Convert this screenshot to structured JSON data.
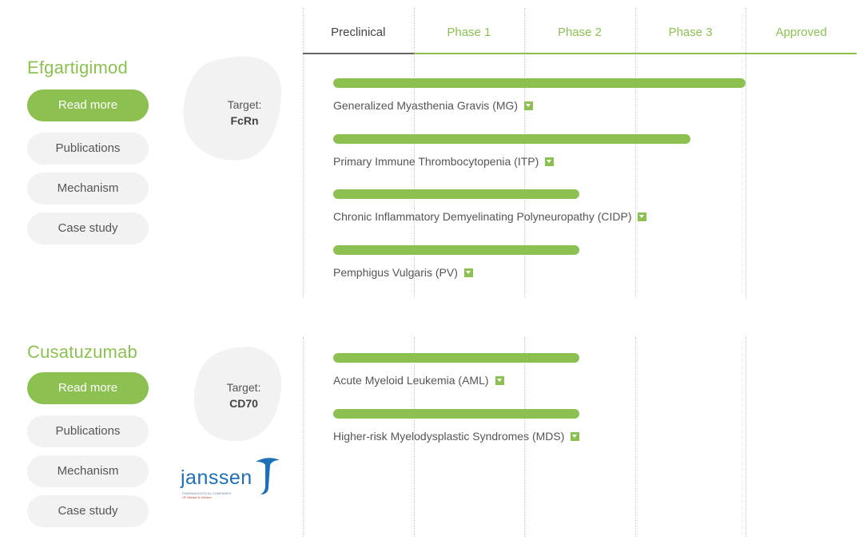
{
  "phases": [
    "Preclinical",
    "Phase 1",
    "Phase 2",
    "Phase 3",
    "Approved"
  ],
  "active_phase": "Preclinical",
  "colors": {
    "accent": "#8cc152",
    "pill_bg": "#f2f2f2",
    "blob_bg": "#f2f2f2",
    "logo_blue": "#1d6fb8"
  },
  "drugs": [
    {
      "name": "Efgartigimod",
      "buttons": {
        "read_more": "Read more",
        "publications": "Publications",
        "mechanism": "Mechanism",
        "case_study": "Case study"
      },
      "target_label": "Target:",
      "target_value": "FcRn",
      "indications": [
        {
          "name": "Generalized Myasthenia Gravis (MG)",
          "progress": 0.745
        },
        {
          "name": "Primary Immune Thrombocytopenia (ITP)",
          "progress": 0.645
        },
        {
          "name": "Chronic Inflammatory Demyelinating Polyneuropathy (CIDP)",
          "progress": 0.445
        },
        {
          "name": "Pemphigus Vulgaris (PV)",
          "progress": 0.445
        }
      ]
    },
    {
      "name": "Cusatuzumab",
      "buttons": {
        "read_more": "Read more",
        "publications": "Publications",
        "mechanism": "Mechanism",
        "case_study": "Case study"
      },
      "target_label": "Target:",
      "target_value": "CD70",
      "partner": {
        "name": "janssen",
        "line1": "PHARMACEUTICAL COMPANIES",
        "line2": "OF Johnson & Johnson"
      },
      "indications": [
        {
          "name": "Acute Myeloid Leukemia (AML)",
          "progress": 0.445
        },
        {
          "name": "Higher-risk Myelodysplastic Syndromes (MDS)",
          "progress": 0.445
        }
      ]
    }
  ]
}
